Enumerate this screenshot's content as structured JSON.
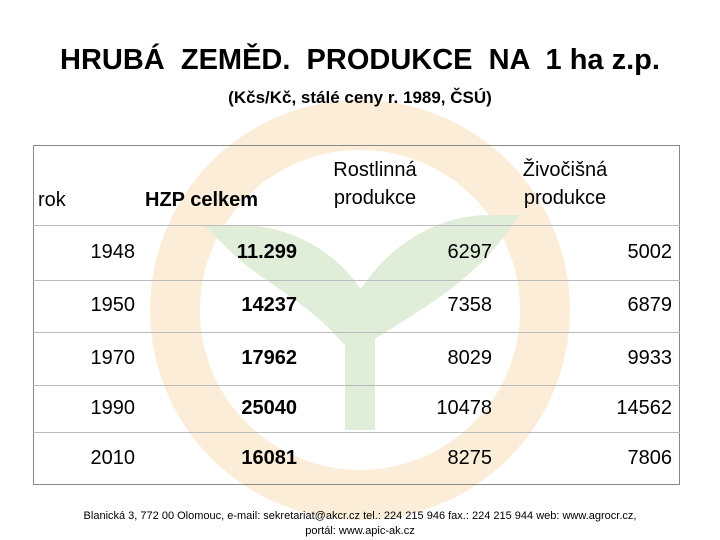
{
  "header": {
    "title": "HRUBÁ  ZEMĚD.  PRODUKCE  NA  1 ha z.p.",
    "subtitle": "(Kčs/Kč, stálé ceny r. 1989, ČSÚ)"
  },
  "table": {
    "columns": [
      "rok",
      "HZP celkem",
      "Rostlinná produkce",
      "Živočišná produkce"
    ],
    "rows": [
      [
        "1948",
        "11.299",
        "6297",
        "5002"
      ],
      [
        "1950",
        "14237",
        "7358",
        "6879"
      ],
      [
        "1970",
        "17962",
        "8029",
        "9933"
      ],
      [
        "1990",
        "25040",
        "10478",
        "14562"
      ],
      [
        "2010",
        "16081",
        "8275",
        "7806"
      ]
    ]
  },
  "footer": {
    "lines": [
      "Blanická 3, 772 00 Olomouc, e-mail: sekretariat@akcr.cz tel.: 224 215 946 fax.: 224 215 944 web: www.agrocr.cz,",
      "portál: www.apic-ak.cz"
    ]
  }
}
